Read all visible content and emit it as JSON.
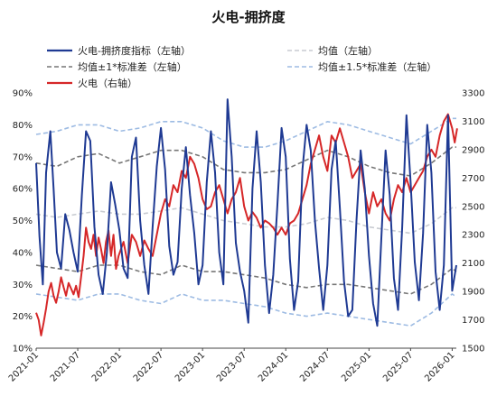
{
  "chart_data": {
    "type": "line",
    "title": "火电-拥挤度",
    "x_ticks": [
      "2021-01",
      "2021-07",
      "2022-01",
      "2022-07",
      "2023-01",
      "2023-07",
      "2024-01",
      "2024-07",
      "2025-01",
      "2025-07",
      "2026-01"
    ],
    "y_left": {
      "ticks": [
        "10%",
        "20%",
        "30%",
        "40%",
        "50%",
        "60%",
        "70%",
        "80%",
        "90%"
      ],
      "lim": [
        10,
        90
      ],
      "unit": "%"
    },
    "y_right": {
      "ticks": [
        "1500",
        "1700",
        "1900",
        "2100",
        "2300",
        "2500",
        "2700",
        "2900",
        "3100",
        "3300"
      ],
      "lim": [
        1500,
        3300
      ]
    },
    "legend": [
      {
        "key": "crowding",
        "label": "火电-拥挤度指标（左轴）",
        "color": "#1f3a93",
        "dash": ""
      },
      {
        "key": "mean",
        "label": "均值（左轴）",
        "color": "#c9ccd2",
        "dash": "5,3"
      },
      {
        "key": "band1",
        "label": "均值±1*标准差（左轴）",
        "color": "#777777",
        "dash": "5,3"
      },
      {
        "key": "band15",
        "label": "均值±1.5*标准差（左轴）",
        "color": "#9dbbe3",
        "dash": "5,3"
      },
      {
        "key": "price",
        "label": "火电（右轴）",
        "color": "#d62728",
        "dash": ""
      }
    ],
    "series": {
      "crowding": {
        "axis": "left",
        "x": [
          2021.0,
          2021.04,
          2021.08,
          2021.12,
          2021.17,
          2021.21,
          2021.25,
          2021.3,
          2021.35,
          2021.4,
          2021.45,
          2021.5,
          2021.55,
          2021.6,
          2021.65,
          2021.7,
          2021.75,
          2021.8,
          2021.85,
          2021.9,
          2021.95,
          2022.0,
          2022.05,
          2022.1,
          2022.15,
          2022.2,
          2022.25,
          2022.3,
          2022.35,
          2022.4,
          2022.45,
          2022.5,
          2022.55,
          2022.6,
          2022.65,
          2022.7,
          2022.75,
          2022.8,
          2022.85,
          2022.9,
          2022.95,
          2023.0,
          2023.05,
          2023.1,
          2023.15,
          2023.2,
          2023.25,
          2023.3,
          2023.35,
          2023.4,
          2023.45,
          2023.5,
          2023.55,
          2023.6,
          2023.65,
          2023.7,
          2023.75,
          2023.8,
          2023.85,
          2023.9,
          2023.95,
          2024.0,
          2024.05,
          2024.1,
          2024.15,
          2024.2,
          2024.25,
          2024.3,
          2024.35,
          2024.4,
          2024.45,
          2024.5,
          2024.55,
          2024.6,
          2024.65,
          2024.7,
          2024.75,
          2024.8,
          2024.85,
          2024.9,
          2024.95,
          2025.0,
          2025.05,
          2025.1,
          2025.15,
          2025.2,
          2025.25,
          2025.3,
          2025.35,
          2025.4,
          2025.45,
          2025.5,
          2025.55,
          2025.6,
          2025.65,
          2025.7,
          2025.75,
          2025.8,
          2025.85,
          2025.9,
          2025.95,
          2026.0,
          2026.05
        ],
        "values": [
          68,
          45,
          30,
          65,
          78,
          60,
          40,
          35,
          52,
          47,
          40,
          34,
          58,
          78,
          75,
          48,
          33,
          27,
          40,
          62,
          55,
          47,
          35,
          32,
          70,
          76,
          50,
          36,
          27,
          48,
          67,
          79,
          66,
          42,
          33,
          37,
          60,
          73,
          58,
          46,
          30,
          36,
          62,
          78,
          65,
          40,
          30,
          88,
          70,
          43,
          34,
          28,
          18,
          60,
          78,
          62,
          36,
          21,
          33,
          55,
          79,
          70,
          38,
          22,
          31,
          66,
          80,
          72,
          50,
          35,
          22,
          36,
          66,
          75,
          54,
          31,
          20,
          22,
          50,
          72,
          60,
          39,
          24,
          17,
          45,
          72,
          58,
          32,
          22,
          48,
          83,
          62,
          37,
          25,
          46,
          80,
          65,
          34,
          22,
          36,
          83,
          28,
          36
        ],
        "note": ""
      },
      "price": {
        "axis": "right",
        "x": [
          2021.0,
          2021.03,
          2021.06,
          2021.09,
          2021.12,
          2021.15,
          2021.18,
          2021.21,
          2021.24,
          2021.27,
          2021.3,
          2021.33,
          2021.36,
          2021.39,
          2021.42,
          2021.45,
          2021.48,
          2021.51,
          2021.54,
          2021.57,
          2021.6,
          2021.63,
          2021.66,
          2021.69,
          2021.72,
          2021.75,
          2021.78,
          2021.81,
          2021.84,
          2021.87,
          2021.9,
          2021.93,
          2021.96,
          2021.99,
          2022.05,
          2022.1,
          2022.15,
          2022.2,
          2022.25,
          2022.3,
          2022.35,
          2022.4,
          2022.45,
          2022.5,
          2022.55,
          2022.6,
          2022.65,
          2022.7,
          2022.75,
          2022.8,
          2022.85,
          2022.9,
          2022.95,
          2023.0,
          2023.05,
          2023.1,
          2023.15,
          2023.2,
          2023.25,
          2023.3,
          2023.35,
          2023.4,
          2023.45,
          2023.5,
          2023.55,
          2023.6,
          2023.65,
          2023.7,
          2023.75,
          2023.8,
          2023.85,
          2023.9,
          2023.95,
          2024.0,
          2024.05,
          2024.1,
          2024.15,
          2024.2,
          2024.25,
          2024.3,
          2024.35,
          2024.4,
          2024.45,
          2024.5,
          2024.55,
          2024.6,
          2024.65,
          2024.7,
          2024.75,
          2024.8,
          2024.85,
          2024.9,
          2024.95,
          2025.0,
          2025.05,
          2025.1,
          2025.15,
          2025.2,
          2025.25,
          2025.3,
          2025.35,
          2025.4,
          2025.45,
          2025.5,
          2025.55,
          2025.6,
          2025.65,
          2025.7,
          2025.75,
          2025.8,
          2025.85,
          2025.9,
          2025.95,
          2026.0,
          2026.03,
          2026.06
        ],
        "values": [
          1750,
          1700,
          1590,
          1680,
          1780,
          1900,
          1960,
          1870,
          1820,
          1900,
          2000,
          1930,
          1870,
          1960,
          1920,
          1880,
          1940,
          1860,
          2000,
          2150,
          2350,
          2250,
          2200,
          2300,
          2150,
          2280,
          2200,
          2100,
          2250,
          2330,
          2150,
          2300,
          2060,
          2150,
          2250,
          2100,
          2300,
          2250,
          2150,
          2260,
          2200,
          2150,
          2300,
          2450,
          2550,
          2500,
          2650,
          2600,
          2750,
          2700,
          2850,
          2800,
          2700,
          2550,
          2480,
          2500,
          2600,
          2650,
          2550,
          2450,
          2550,
          2600,
          2700,
          2500,
          2400,
          2460,
          2420,
          2350,
          2400,
          2380,
          2350,
          2300,
          2350,
          2300,
          2380,
          2400,
          2450,
          2550,
          2650,
          2800,
          2900,
          3000,
          2850,
          2750,
          3000,
          2950,
          3050,
          2950,
          2850,
          2700,
          2750,
          2800,
          2600,
          2450,
          2600,
          2500,
          2550,
          2450,
          2400,
          2550,
          2650,
          2600,
          2700,
          2600,
          2650,
          2700,
          2750,
          2850,
          2900,
          2850,
          3000,
          3100,
          3150,
          3050,
          2950,
          3050
        ]
      },
      "mean": {
        "axis": "left",
        "x": [
          2021.0,
          2021.25,
          2021.5,
          2021.75,
          2022.0,
          2022.25,
          2022.5,
          2022.75,
          2023.0,
          2023.25,
          2023.5,
          2023.75,
          2024.0,
          2024.25,
          2024.5,
          2024.75,
          2025.0,
          2025.25,
          2025.5,
          2025.75,
          2026.0,
          2026.05
        ],
        "values": [
          52,
          51,
          52,
          53,
          52,
          52,
          53,
          54,
          52,
          50,
          49,
          48,
          48,
          49,
          51,
          50,
          48,
          47,
          46,
          49,
          54,
          54
        ]
      },
      "plus1": {
        "axis": "left",
        "x": [
          2021.0,
          2021.25,
          2021.5,
          2021.75,
          2022.0,
          2022.25,
          2022.5,
          2022.75,
          2023.0,
          2023.25,
          2023.5,
          2023.75,
          2024.0,
          2024.25,
          2024.5,
          2024.75,
          2025.0,
          2025.25,
          2025.5,
          2025.75,
          2026.0,
          2026.05
        ],
        "values": [
          68,
          67,
          70,
          71,
          68,
          70,
          72,
          72,
          70,
          66,
          65,
          65,
          66,
          69,
          72,
          70,
          67,
          65,
          64,
          68,
          73,
          73
        ]
      },
      "minus1": {
        "axis": "left",
        "x": [
          2021.0,
          2021.25,
          2021.5,
          2021.75,
          2022.0,
          2022.25,
          2022.5,
          2022.75,
          2023.0,
          2023.25,
          2023.5,
          2023.75,
          2024.0,
          2024.25,
          2024.5,
          2024.75,
          2025.0,
          2025.25,
          2025.5,
          2025.75,
          2026.0,
          2026.05
        ],
        "values": [
          36,
          35,
          34,
          36,
          36,
          34,
          33,
          36,
          34,
          34,
          33,
          32,
          30,
          29,
          30,
          30,
          29,
          28,
          27,
          30,
          35,
          34
        ]
      },
      "plus15": {
        "axis": "left",
        "x": [
          2021.0,
          2021.25,
          2021.5,
          2021.75,
          2022.0,
          2022.25,
          2022.5,
          2022.75,
          2023.0,
          2023.25,
          2023.5,
          2023.75,
          2024.0,
          2024.25,
          2024.5,
          2024.75,
          2025.0,
          2025.25,
          2025.5,
          2025.75,
          2026.0,
          2026.05
        ],
        "values": [
          77,
          78,
          80,
          80,
          78,
          79,
          81,
          81,
          79,
          75,
          73,
          73,
          75,
          78,
          81,
          80,
          78,
          76,
          74,
          78,
          82,
          82
        ]
      },
      "minus15": {
        "axis": "left",
        "x": [
          2021.0,
          2021.25,
          2021.5,
          2021.75,
          2022.0,
          2022.25,
          2022.5,
          2022.75,
          2023.0,
          2023.25,
          2023.5,
          2023.75,
          2024.0,
          2024.25,
          2024.5,
          2024.75,
          2025.0,
          2025.25,
          2025.5,
          2025.75,
          2026.0,
          2026.05
        ],
        "values": [
          27,
          26,
          25,
          27,
          27,
          25,
          24,
          27,
          25,
          25,
          24,
          23,
          21,
          20,
          21,
          20,
          19,
          18,
          17,
          21,
          27,
          26
        ]
      }
    }
  }
}
